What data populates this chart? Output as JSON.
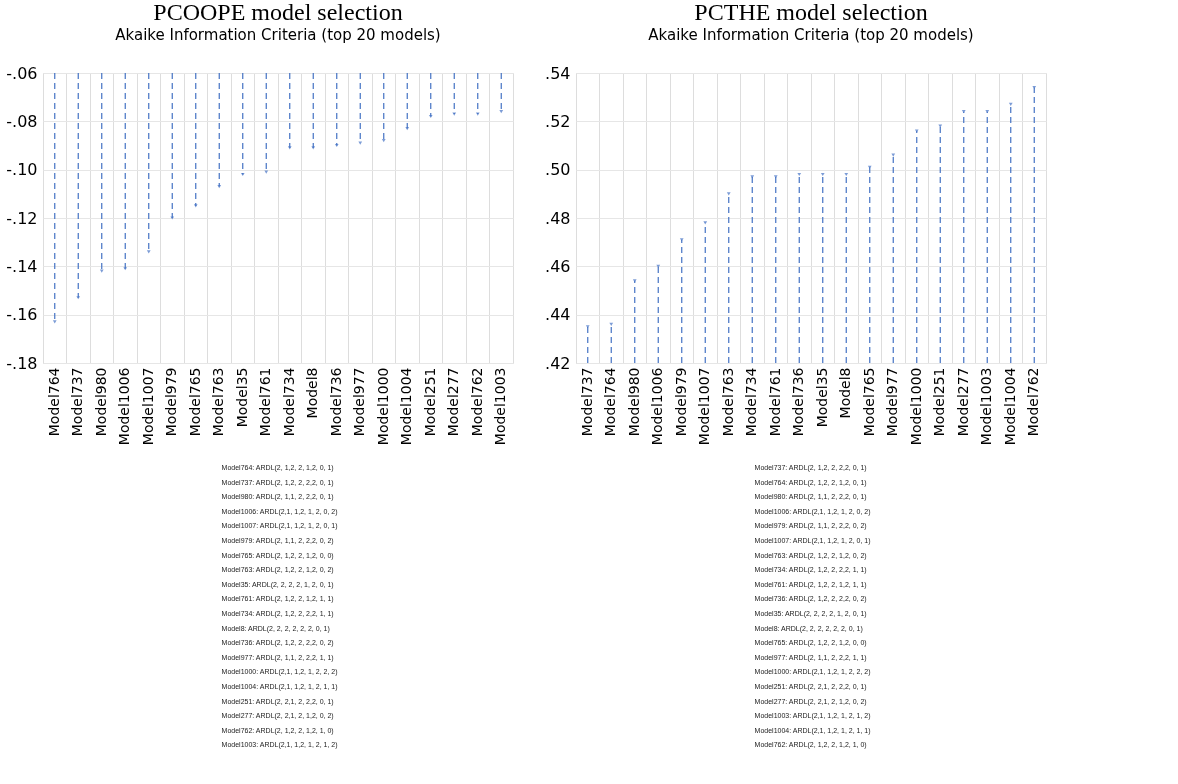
{
  "chart_data": [
    {
      "type": "lollipop",
      "title": "PCOOPE model selection",
      "subtitle": "Akaike Information Criteria (top 20 models)",
      "categories": [
        "Model764",
        "Model737",
        "Model980",
        "Model1006",
        "Model1007",
        "Model979",
        "Model765",
        "Model763",
        "Model35",
        "Model761",
        "Model734",
        "Model8",
        "Model736",
        "Model977",
        "Model1000",
        "Model1004",
        "Model251",
        "Model277",
        "Model762",
        "Model1003"
      ],
      "series": [
        {
          "color": "#4472c4",
          "values": [
            -0.163,
            -0.153,
            -0.142,
            -0.141,
            -0.134,
            -0.12,
            -0.115,
            -0.107,
            -0.102,
            -0.101,
            -0.091,
            -0.091,
            -0.09,
            -0.089,
            -0.088,
            -0.083,
            -0.078,
            -0.077,
            -0.077,
            -0.076
          ]
        }
      ],
      "ylim": [
        -0.18,
        -0.06
      ],
      "yticks": [
        {
          "value": -0.18,
          "label": "-.18"
        },
        {
          "value": -0.16,
          "label": "-.16"
        },
        {
          "value": -0.14,
          "label": "-.14"
        },
        {
          "value": -0.12,
          "label": "-.12"
        },
        {
          "value": -0.1,
          "label": "-.10"
        },
        {
          "value": -0.08,
          "label": "-.08"
        },
        {
          "value": -0.06,
          "label": "-.06"
        }
      ],
      "grid": true,
      "marker": "triangle",
      "line_style": "dashed",
      "annotations": [
        "Model764: ARDL(2, 1,2, 2, 1,2, 0, 1)",
        "Model737: ARDL(2, 1,2, 2, 2,2, 0, 1)",
        "Model980: ARDL(2, 1,1, 2, 2,2, 0, 1)",
        "Model1006: ARDL(2,1, 1,2, 1, 2, 0, 2)",
        "Model1007: ARDL(2,1, 1,2, 1, 2, 0, 1)",
        "Model979: ARDL(2, 1,1, 2, 2,2, 0, 2)",
        "Model765: ARDL(2, 1,2, 2, 1,2, 0, 0)",
        "Model763: ARDL(2, 1,2, 2, 1,2, 0, 2)",
        "Model35: ARDL(2, 2, 2, 2, 1, 2, 0, 1)",
        "Model761: ARDL(2, 1,2, 2, 1,2, 1, 1)",
        "Model734: ARDL(2, 1,2, 2, 2,2, 1, 1)",
        "Model8: ARDL(2, 2, 2, 2, 2, 2, 0, 1)",
        "Model736: ARDL(2, 1,2, 2, 2,2, 0, 2)",
        "Model977: ARDL(2, 1,1, 2, 2,2, 1, 1)",
        "Model1000: ARDL(2,1, 1,2, 1, 2, 2, 2)",
        "Model1004: ARDL(2,1, 1,2, 1, 2, 1, 1)",
        "Model251: ARDL(2, 2,1, 2, 2,2, 0, 1)",
        "Model277: ARDL(2, 2,1, 2, 1,2, 0, 2)",
        "Model762: ARDL(2, 1,2, 2, 1,2, 1, 0)",
        "Model1003: ARDL(2,1, 1,2, 1, 2, 1, 2)"
      ]
    },
    {
      "type": "lollipop",
      "title": "PCTHE model selection",
      "subtitle": "Akaike Information Criteria (top 20 models)",
      "categories": [
        "Model737",
        "Model764",
        "Model980",
        "Model1006",
        "Model979",
        "Model1007",
        "Model763",
        "Model734",
        "Model761",
        "Model736",
        "Model35",
        "Model8",
        "Model765",
        "Model977",
        "Model1000",
        "Model251",
        "Model277",
        "Model1003",
        "Model1004",
        "Model762"
      ],
      "series": [
        {
          "color": "#4472c4",
          "values": [
            0.435,
            0.436,
            0.454,
            0.46,
            0.471,
            0.478,
            0.49,
            0.497,
            0.497,
            0.498,
            0.498,
            0.498,
            0.501,
            0.506,
            0.516,
            0.518,
            0.524,
            0.524,
            0.527,
            0.534
          ]
        }
      ],
      "ylim": [
        0.42,
        0.54
      ],
      "yticks": [
        {
          "value": 0.42,
          "label": ".42"
        },
        {
          "value": 0.44,
          "label": ".44"
        },
        {
          "value": 0.46,
          "label": ".46"
        },
        {
          "value": 0.48,
          "label": ".48"
        },
        {
          "value": 0.5,
          "label": ".50"
        },
        {
          "value": 0.52,
          "label": ".52"
        },
        {
          "value": 0.54,
          "label": ".54"
        }
      ],
      "grid": true,
      "marker": "triangle",
      "line_style": "dashed",
      "annotations": [
        "Model737: ARDL(2, 1,2, 2, 2,2, 0, 1)",
        "Model764: ARDL(2, 1,2, 2, 1,2, 0, 1)",
        "Model980: ARDL(2, 1,1, 2, 2,2, 0, 1)",
        "Model1006: ARDL(2,1, 1,2, 1, 2, 0, 2)",
        "Model979: ARDL(2, 1,1, 2, 2,2, 0, 2)",
        "Model1007: ARDL(2,1, 1,2, 1, 2, 0, 1)",
        "Model763: ARDL(2, 1,2, 2, 1,2, 0, 2)",
        "Model734: ARDL(2, 1,2, 2, 2,2, 1, 1)",
        "Model761: ARDL(2, 1,2, 2, 1,2, 1, 1)",
        "Model736: ARDL(2, 1,2, 2, 2,2, 0, 2)",
        "Model35: ARDL(2, 2, 2, 2, 1, 2, 0, 1)",
        "Model8: ARDL(2, 2, 2, 2, 2, 2, 0, 1)",
        "Model765: ARDL(2, 1,2, 2, 1,2, 0, 0)",
        "Model977: ARDL(2, 1,1, 2, 2,2, 1, 1)",
        "Model1000: ARDL(2,1, 1,2, 1, 2, 2, 2)",
        "Model251: ARDL(2, 2,1, 2, 2,2, 0, 1)",
        "Model277: ARDL(2, 2,1, 2, 1,2, 0, 2)",
        "Model1003: ARDL(2,1, 1,2, 1, 2, 1, 2)",
        "Model1004: ARDL(2,1, 1,2, 1, 2, 1, 1)",
        "Model762: ARDL(2, 1,2, 2, 1,2, 1, 0)"
      ]
    }
  ]
}
